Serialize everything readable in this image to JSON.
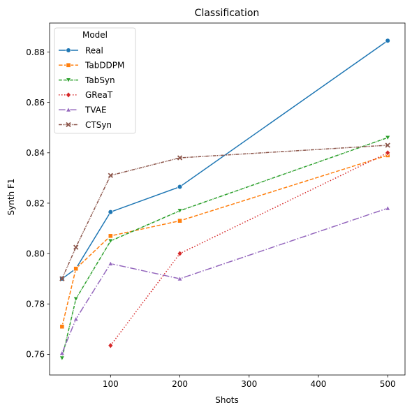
{
  "chart_data": {
    "type": "line",
    "title": "Classification",
    "xlabel": "Shots",
    "ylabel": "Synth F1",
    "xlim": [
      12,
      525
    ],
    "ylim": [
      0.7518,
      0.8915
    ],
    "xticks": [
      100,
      200,
      300,
      400,
      500
    ],
    "xtick_labels": [
      "100",
      "200",
      "300",
      "400",
      "500"
    ],
    "yticks": [
      0.76,
      0.78,
      0.8,
      0.82,
      0.84,
      0.86,
      0.88
    ],
    "ytick_labels": [
      "0.76",
      "0.78",
      "0.80",
      "0.82",
      "0.84",
      "0.86",
      "0.88"
    ],
    "grid": false,
    "legend": {
      "title": "Model",
      "position": "top-left"
    },
    "series": [
      {
        "name": "Real",
        "color": "#1f77b4",
        "dash": "solid",
        "marker": "circle",
        "x": [
          30,
          50,
          100,
          200,
          500
        ],
        "y": [
          0.79,
          0.794,
          0.8165,
          0.8265,
          0.8845
        ]
      },
      {
        "name": "TabDDPM",
        "color": "#ff7f0e",
        "dash": "dashed",
        "marker": "square",
        "x": [
          30,
          50,
          100,
          200,
          500
        ],
        "y": [
          0.771,
          0.794,
          0.807,
          0.813,
          0.839
        ]
      },
      {
        "name": "TabSyn",
        "color": "#2ca02c",
        "dash": "dashdot",
        "marker": "triangle-down",
        "x": [
          30,
          50,
          100,
          200,
          500
        ],
        "y": [
          0.7585,
          0.782,
          0.805,
          0.817,
          0.846
        ]
      },
      {
        "name": "GReaT",
        "color": "#d62728",
        "dash": "dotted",
        "marker": "diamond",
        "x": [
          100,
          200,
          500
        ],
        "y": [
          0.7635,
          0.8,
          0.84
        ]
      },
      {
        "name": "TVAE",
        "color": "#9467bd",
        "dash": "dashdot-long",
        "marker": "triangle-up",
        "x": [
          30,
          50,
          100,
          200,
          500
        ],
        "y": [
          0.7605,
          0.774,
          0.796,
          0.79,
          0.818
        ]
      },
      {
        "name": "CTSyn",
        "color": "#8c564b",
        "dash": "dashed-dot",
        "marker": "x",
        "x": [
          30,
          50,
          100,
          200,
          500
        ],
        "y": [
          0.79,
          0.8025,
          0.831,
          0.838,
          0.843
        ]
      }
    ]
  }
}
